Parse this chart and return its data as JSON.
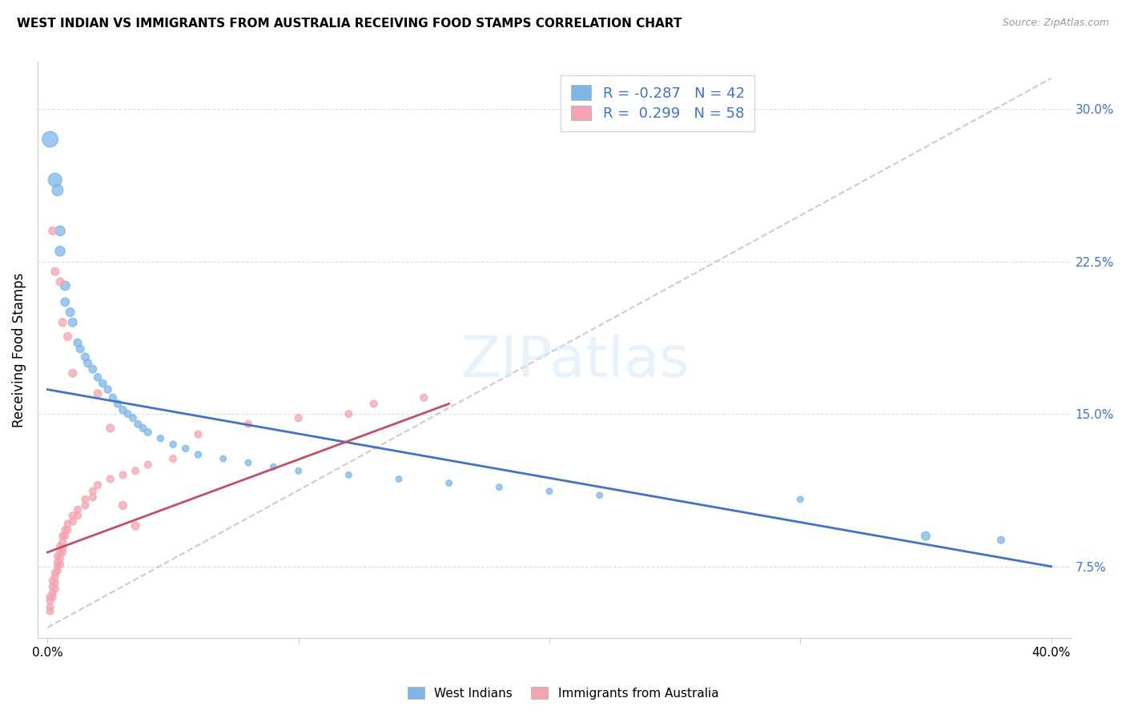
{
  "title": "WEST INDIAN VS IMMIGRANTS FROM AUSTRALIA RECEIVING FOOD STAMPS CORRELATION CHART",
  "source": "Source: ZipAtlas.com",
  "ylabel": "Receiving Food Stamps",
  "ytick_labels": [
    "7.5%",
    "15.0%",
    "22.5%",
    "30.0%"
  ],
  "ytick_values": [
    0.075,
    0.15,
    0.225,
    0.3
  ],
  "xlim": [
    0.0,
    0.4
  ],
  "ylim": [
    0.04,
    0.315
  ],
  "legend_blue_r": "-0.287",
  "legend_blue_n": "42",
  "legend_pink_r": "0.299",
  "legend_pink_n": "58",
  "legend_label_blue": "West Indians",
  "legend_label_pink": "Immigrants from Australia",
  "blue_color": "#7EB6E8",
  "pink_color": "#F4A4B0",
  "blue_line_color": "#4472C4",
  "pink_line_color": "#C0506A",
  "dashed_line_color": "#CCCCCC",
  "blue_dots": [
    [
      0.001,
      0.285
    ],
    [
      0.003,
      0.265
    ],
    [
      0.004,
      0.26
    ],
    [
      0.005,
      0.24
    ],
    [
      0.005,
      0.23
    ],
    [
      0.007,
      0.213
    ],
    [
      0.007,
      0.205
    ],
    [
      0.009,
      0.2
    ],
    [
      0.01,
      0.195
    ],
    [
      0.012,
      0.185
    ],
    [
      0.013,
      0.182
    ],
    [
      0.015,
      0.178
    ],
    [
      0.016,
      0.175
    ],
    [
      0.018,
      0.172
    ],
    [
      0.02,
      0.168
    ],
    [
      0.022,
      0.165
    ],
    [
      0.024,
      0.162
    ],
    [
      0.026,
      0.158
    ],
    [
      0.028,
      0.155
    ],
    [
      0.03,
      0.152
    ],
    [
      0.032,
      0.15
    ],
    [
      0.034,
      0.148
    ],
    [
      0.036,
      0.145
    ],
    [
      0.038,
      0.143
    ],
    [
      0.04,
      0.141
    ],
    [
      0.045,
      0.138
    ],
    [
      0.05,
      0.135
    ],
    [
      0.055,
      0.133
    ],
    [
      0.06,
      0.13
    ],
    [
      0.07,
      0.128
    ],
    [
      0.08,
      0.126
    ],
    [
      0.09,
      0.124
    ],
    [
      0.1,
      0.122
    ],
    [
      0.12,
      0.12
    ],
    [
      0.14,
      0.118
    ],
    [
      0.16,
      0.116
    ],
    [
      0.18,
      0.114
    ],
    [
      0.2,
      0.112
    ],
    [
      0.22,
      0.11
    ],
    [
      0.3,
      0.108
    ],
    [
      0.35,
      0.09
    ],
    [
      0.38,
      0.088
    ]
  ],
  "blue_sizes": [
    200,
    150,
    100,
    80,
    80,
    70,
    60,
    60,
    60,
    50,
    50,
    50,
    50,
    50,
    45,
    45,
    45,
    45,
    45,
    45,
    40,
    40,
    40,
    40,
    40,
    35,
    35,
    35,
    35,
    30,
    30,
    30,
    30,
    30,
    30,
    30,
    30,
    30,
    30,
    30,
    60,
    40
  ],
  "pink_dots": [
    [
      0.001,
      0.06
    ],
    [
      0.001,
      0.058
    ],
    [
      0.001,
      0.055
    ],
    [
      0.001,
      0.053
    ],
    [
      0.002,
      0.068
    ],
    [
      0.002,
      0.065
    ],
    [
      0.002,
      0.062
    ],
    [
      0.002,
      0.06
    ],
    [
      0.003,
      0.072
    ],
    [
      0.003,
      0.07
    ],
    [
      0.003,
      0.067
    ],
    [
      0.003,
      0.064
    ],
    [
      0.004,
      0.08
    ],
    [
      0.004,
      0.077
    ],
    [
      0.004,
      0.075
    ],
    [
      0.004,
      0.073
    ],
    [
      0.005,
      0.085
    ],
    [
      0.005,
      0.082
    ],
    [
      0.005,
      0.079
    ],
    [
      0.005,
      0.076
    ],
    [
      0.006,
      0.09
    ],
    [
      0.006,
      0.087
    ],
    [
      0.006,
      0.084
    ],
    [
      0.006,
      0.082
    ],
    [
      0.007,
      0.093
    ],
    [
      0.007,
      0.09
    ],
    [
      0.008,
      0.096
    ],
    [
      0.008,
      0.093
    ],
    [
      0.01,
      0.1
    ],
    [
      0.01,
      0.097
    ],
    [
      0.012,
      0.103
    ],
    [
      0.012,
      0.1
    ],
    [
      0.015,
      0.108
    ],
    [
      0.015,
      0.105
    ],
    [
      0.018,
      0.112
    ],
    [
      0.018,
      0.109
    ],
    [
      0.02,
      0.115
    ],
    [
      0.025,
      0.118
    ],
    [
      0.03,
      0.12
    ],
    [
      0.035,
      0.122
    ],
    [
      0.04,
      0.125
    ],
    [
      0.05,
      0.128
    ],
    [
      0.06,
      0.14
    ],
    [
      0.08,
      0.145
    ],
    [
      0.1,
      0.148
    ],
    [
      0.12,
      0.15
    ],
    [
      0.13,
      0.155
    ],
    [
      0.15,
      0.158
    ],
    [
      0.002,
      0.24
    ],
    [
      0.003,
      0.22
    ],
    [
      0.005,
      0.215
    ],
    [
      0.006,
      0.195
    ],
    [
      0.008,
      0.188
    ],
    [
      0.01,
      0.17
    ],
    [
      0.02,
      0.16
    ],
    [
      0.025,
      0.143
    ],
    [
      0.03,
      0.105
    ],
    [
      0.035,
      0.095
    ]
  ],
  "pink_sizes": [
    40,
    40,
    40,
    40,
    40,
    40,
    40,
    40,
    40,
    40,
    40,
    40,
    40,
    40,
    40,
    40,
    40,
    40,
    40,
    40,
    40,
    40,
    40,
    40,
    40,
    40,
    40,
    40,
    40,
    40,
    40,
    40,
    40,
    40,
    40,
    40,
    40,
    40,
    40,
    40,
    40,
    40,
    40,
    40,
    40,
    40,
    40,
    40,
    50,
    50,
    50,
    50,
    50,
    50,
    50,
    50,
    50,
    50
  ],
  "blue_line": {
    "x0": 0.0,
    "x1": 0.4,
    "y0": 0.162,
    "y1": 0.075
  },
  "pink_line": {
    "x0": 0.0,
    "x1": 0.16,
    "y0": 0.082,
    "y1": 0.155
  },
  "diag_line": {
    "x0": 0.0,
    "x1": 0.4,
    "y0": 0.045,
    "y1": 0.315
  }
}
